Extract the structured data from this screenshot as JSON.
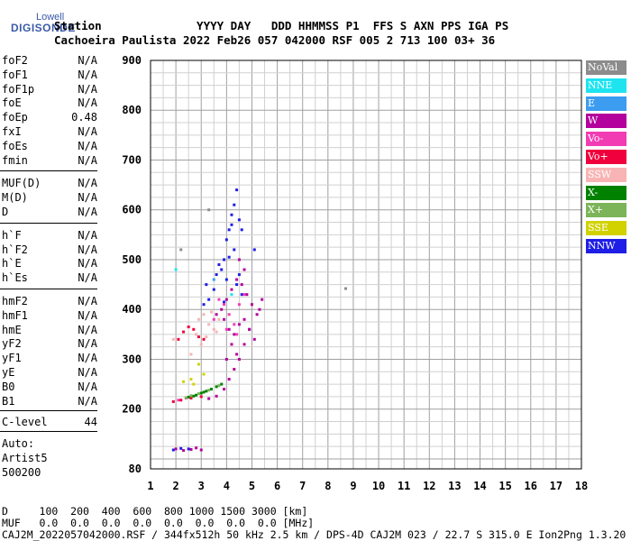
{
  "logo": {
    "top": "Lowell",
    "bottom": "DIGISONDE"
  },
  "header": {
    "line1": "Station              YYYY DAY   DDD HHMMSS P1  FFS S AXN PPS IGA PS",
    "line2": "Cachoeira Paulista 2022 Feb26 057 042000 RSF 005 2 713 100 03+ 36"
  },
  "params": {
    "group1": [
      {
        "name": "foF2",
        "value": "N/A"
      },
      {
        "name": "foF1",
        "value": "N/A"
      },
      {
        "name": "foF1p",
        "value": "N/A"
      },
      {
        "name": "foE",
        "value": "N/A"
      },
      {
        "name": "foEp",
        "value": "0.48"
      },
      {
        "name": "fxI",
        "value": "N/A"
      },
      {
        "name": "foEs",
        "value": "N/A"
      },
      {
        "name": "fmin",
        "value": "N/A"
      }
    ],
    "group2": [
      {
        "name": "MUF(D)",
        "value": "N/A"
      },
      {
        "name": "M(D)",
        "value": "N/A"
      },
      {
        "name": "D",
        "value": "N/A"
      }
    ],
    "group3": [
      {
        "name": "h`F",
        "value": "N/A"
      },
      {
        "name": "h`F2",
        "value": "N/A"
      },
      {
        "name": "h`E",
        "value": "N/A"
      },
      {
        "name": "h`Es",
        "value": "N/A"
      }
    ],
    "group4": [
      {
        "name": "hmF2",
        "value": "N/A"
      },
      {
        "name": "hmF1",
        "value": "N/A"
      },
      {
        "name": "hmE",
        "value": "N/A"
      },
      {
        "name": "yF2",
        "value": "N/A"
      },
      {
        "name": "yF1",
        "value": "N/A"
      },
      {
        "name": "yE",
        "value": "N/A"
      },
      {
        "name": "B0",
        "value": "N/A"
      },
      {
        "name": "B1",
        "value": "N/A"
      }
    ],
    "clevel": {
      "name": "C-level",
      "value": "44"
    }
  },
  "auto": {
    "line1": "Auto:",
    "line2": "Artist5",
    "line3": "500200"
  },
  "legend": [
    {
      "label": "NoVal",
      "bg": "#8c8c8c",
      "fg": "#ffffff"
    },
    {
      "label": "NNE",
      "bg": "#1ee4f0",
      "fg": "#ffffff"
    },
    {
      "label": "E",
      "bg": "#3c9cf0",
      "fg": "#ffffff"
    },
    {
      "label": "W",
      "bg": "#b4009c",
      "fg": "#ffffff"
    },
    {
      "label": "Vo-",
      "bg": "#f23cb4",
      "fg": "#ffffff"
    },
    {
      "label": "Vo+",
      "bg": "#f0003c",
      "fg": "#ffffff"
    },
    {
      "label": "SSW",
      "bg": "#f8b4b4",
      "fg": "#ffffff"
    },
    {
      "label": "X-",
      "bg": "#008200",
      "fg": "#ffffff"
    },
    {
      "label": "X+",
      "bg": "#7cb45a",
      "fg": "#ffffff"
    },
    {
      "label": "SSE",
      "bg": "#d2d200",
      "fg": "#ffffff"
    },
    {
      "label": "NNW",
      "bg": "#1e1ee6",
      "fg": "#ffffff"
    }
  ],
  "bottom": {
    "line1": "D     100  200  400  600  800 1000 1500 3000 [km]",
    "line2": "MUF   0.0  0.0  0.0  0.0  0.0  0.0  0.0  0.0 [MHz]",
    "line3": "CAJ2M_2022057042000.RSF / 344fx512h 50 kHz 2.5 km / DPS-4D CAJ2M 023 / 22.7 S 315.0 E Ion2Png 1.3.20"
  },
  "chart_data": {
    "type": "scatter",
    "xlim": [
      1,
      18
    ],
    "ylim": [
      80,
      900
    ],
    "xticks": [
      1,
      2,
      3,
      4,
      5,
      6,
      7,
      8,
      9,
      10,
      11,
      12,
      13,
      14,
      15,
      16,
      17,
      18
    ],
    "yticks": [
      100,
      200,
      300,
      400,
      500,
      600,
      700,
      800,
      900
    ],
    "ytick_bottom_label": "80",
    "grid": true,
    "series": [
      {
        "name": "NNW",
        "color": "#1e1ee6",
        "x": [
          3.6,
          3.8,
          3.9,
          4.0,
          4.1,
          4.2,
          4.3,
          4.4,
          4.5,
          4.6,
          3.5,
          3.3,
          3.1,
          4.0,
          4.3,
          4.5,
          3.7,
          4.1,
          4.4,
          4.6,
          3.2,
          3.9,
          4.2,
          5.1,
          1.9,
          2.2,
          2.5
        ],
        "y": [
          470,
          480,
          500,
          540,
          560,
          590,
          610,
          640,
          580,
          560,
          440,
          420,
          410,
          460,
          520,
          470,
          490,
          505,
          450,
          430,
          450,
          415,
          570,
          520,
          118,
          121,
          120
        ]
      },
      {
        "name": "W",
        "color": "#b4009c",
        "x": [
          4.0,
          4.2,
          4.4,
          4.6,
          4.8,
          5.0,
          5.2,
          5.4,
          3.8,
          3.6,
          4.5,
          4.7,
          4.3,
          4.9,
          5.1,
          5.3,
          3.9,
          4.1,
          4.5,
          4.7,
          4.2,
          4.4,
          4.0,
          2.0,
          2.3,
          2.6,
          2.8,
          3.0,
          3.3,
          3.6,
          3.9,
          4.1,
          4.3,
          4.5,
          4.7,
          4.9
        ],
        "y": [
          420,
          440,
          460,
          450,
          430,
          410,
          390,
          420,
          400,
          390,
          370,
          380,
          350,
          360,
          340,
          400,
          380,
          360,
          500,
          480,
          330,
          310,
          300,
          120,
          117,
          119,
          122,
          118,
          221,
          226,
          240,
          260,
          280,
          300,
          330,
          360
        ]
      },
      {
        "name": "Vo-",
        "color": "#f23cb4",
        "x": [
          3.7,
          3.9,
          4.1,
          4.3,
          4.5,
          4.7,
          3.5,
          4.0,
          4.4,
          2.1,
          2.4
        ],
        "y": [
          420,
          410,
          390,
          370,
          410,
          430,
          380,
          360,
          350,
          218,
          222
        ]
      },
      {
        "name": "Vo+",
        "color": "#f0003c",
        "x": [
          2.1,
          2.3,
          2.5,
          2.7,
          2.9,
          3.1,
          1.9,
          2.2,
          2.6,
          3.0
        ],
        "y": [
          340,
          355,
          365,
          360,
          345,
          340,
          215,
          218,
          222,
          225
        ]
      },
      {
        "name": "SSW",
        "color": "#f8b4b4",
        "x": [
          2.9,
          3.1,
          3.3,
          3.5,
          3.7,
          2.8,
          3.2,
          3.6,
          3.4,
          3.0,
          2.6,
          1.9
        ],
        "y": [
          380,
          390,
          370,
          360,
          380,
          350,
          345,
          355,
          395,
          330,
          310,
          340
        ]
      },
      {
        "name": "X-",
        "color": "#008200",
        "x": [
          2.8,
          3.0,
          3.2,
          3.4,
          3.6,
          3.8,
          2.5,
          2.7,
          3.1
        ],
        "y": [
          228,
          232,
          236,
          240,
          245,
          250,
          224,
          226,
          234
        ]
      },
      {
        "name": "X+",
        "color": "#7cb45a",
        "x": [
          2.4,
          2.6,
          2.9,
          3.3,
          3.7
        ],
        "y": [
          223,
          227,
          231,
          238,
          247
        ]
      },
      {
        "name": "SSE",
        "color": "#d2d200",
        "x": [
          2.3,
          2.6,
          2.9,
          3.1,
          2.7
        ],
        "y": [
          255,
          260,
          290,
          270,
          250
        ]
      },
      {
        "name": "NNE",
        "color": "#1ee4f0",
        "x": [
          2.0,
          4.2
        ],
        "y": [
          480,
          430
        ]
      },
      {
        "name": "E",
        "color": "#3c9cf0",
        "x": [
          3.5
        ],
        "y": [
          460
        ]
      },
      {
        "name": "NoVal",
        "color": "#8c8c8c",
        "x": [
          8.7,
          3.3,
          2.2
        ],
        "y": [
          442,
          600,
          520
        ]
      }
    ]
  }
}
